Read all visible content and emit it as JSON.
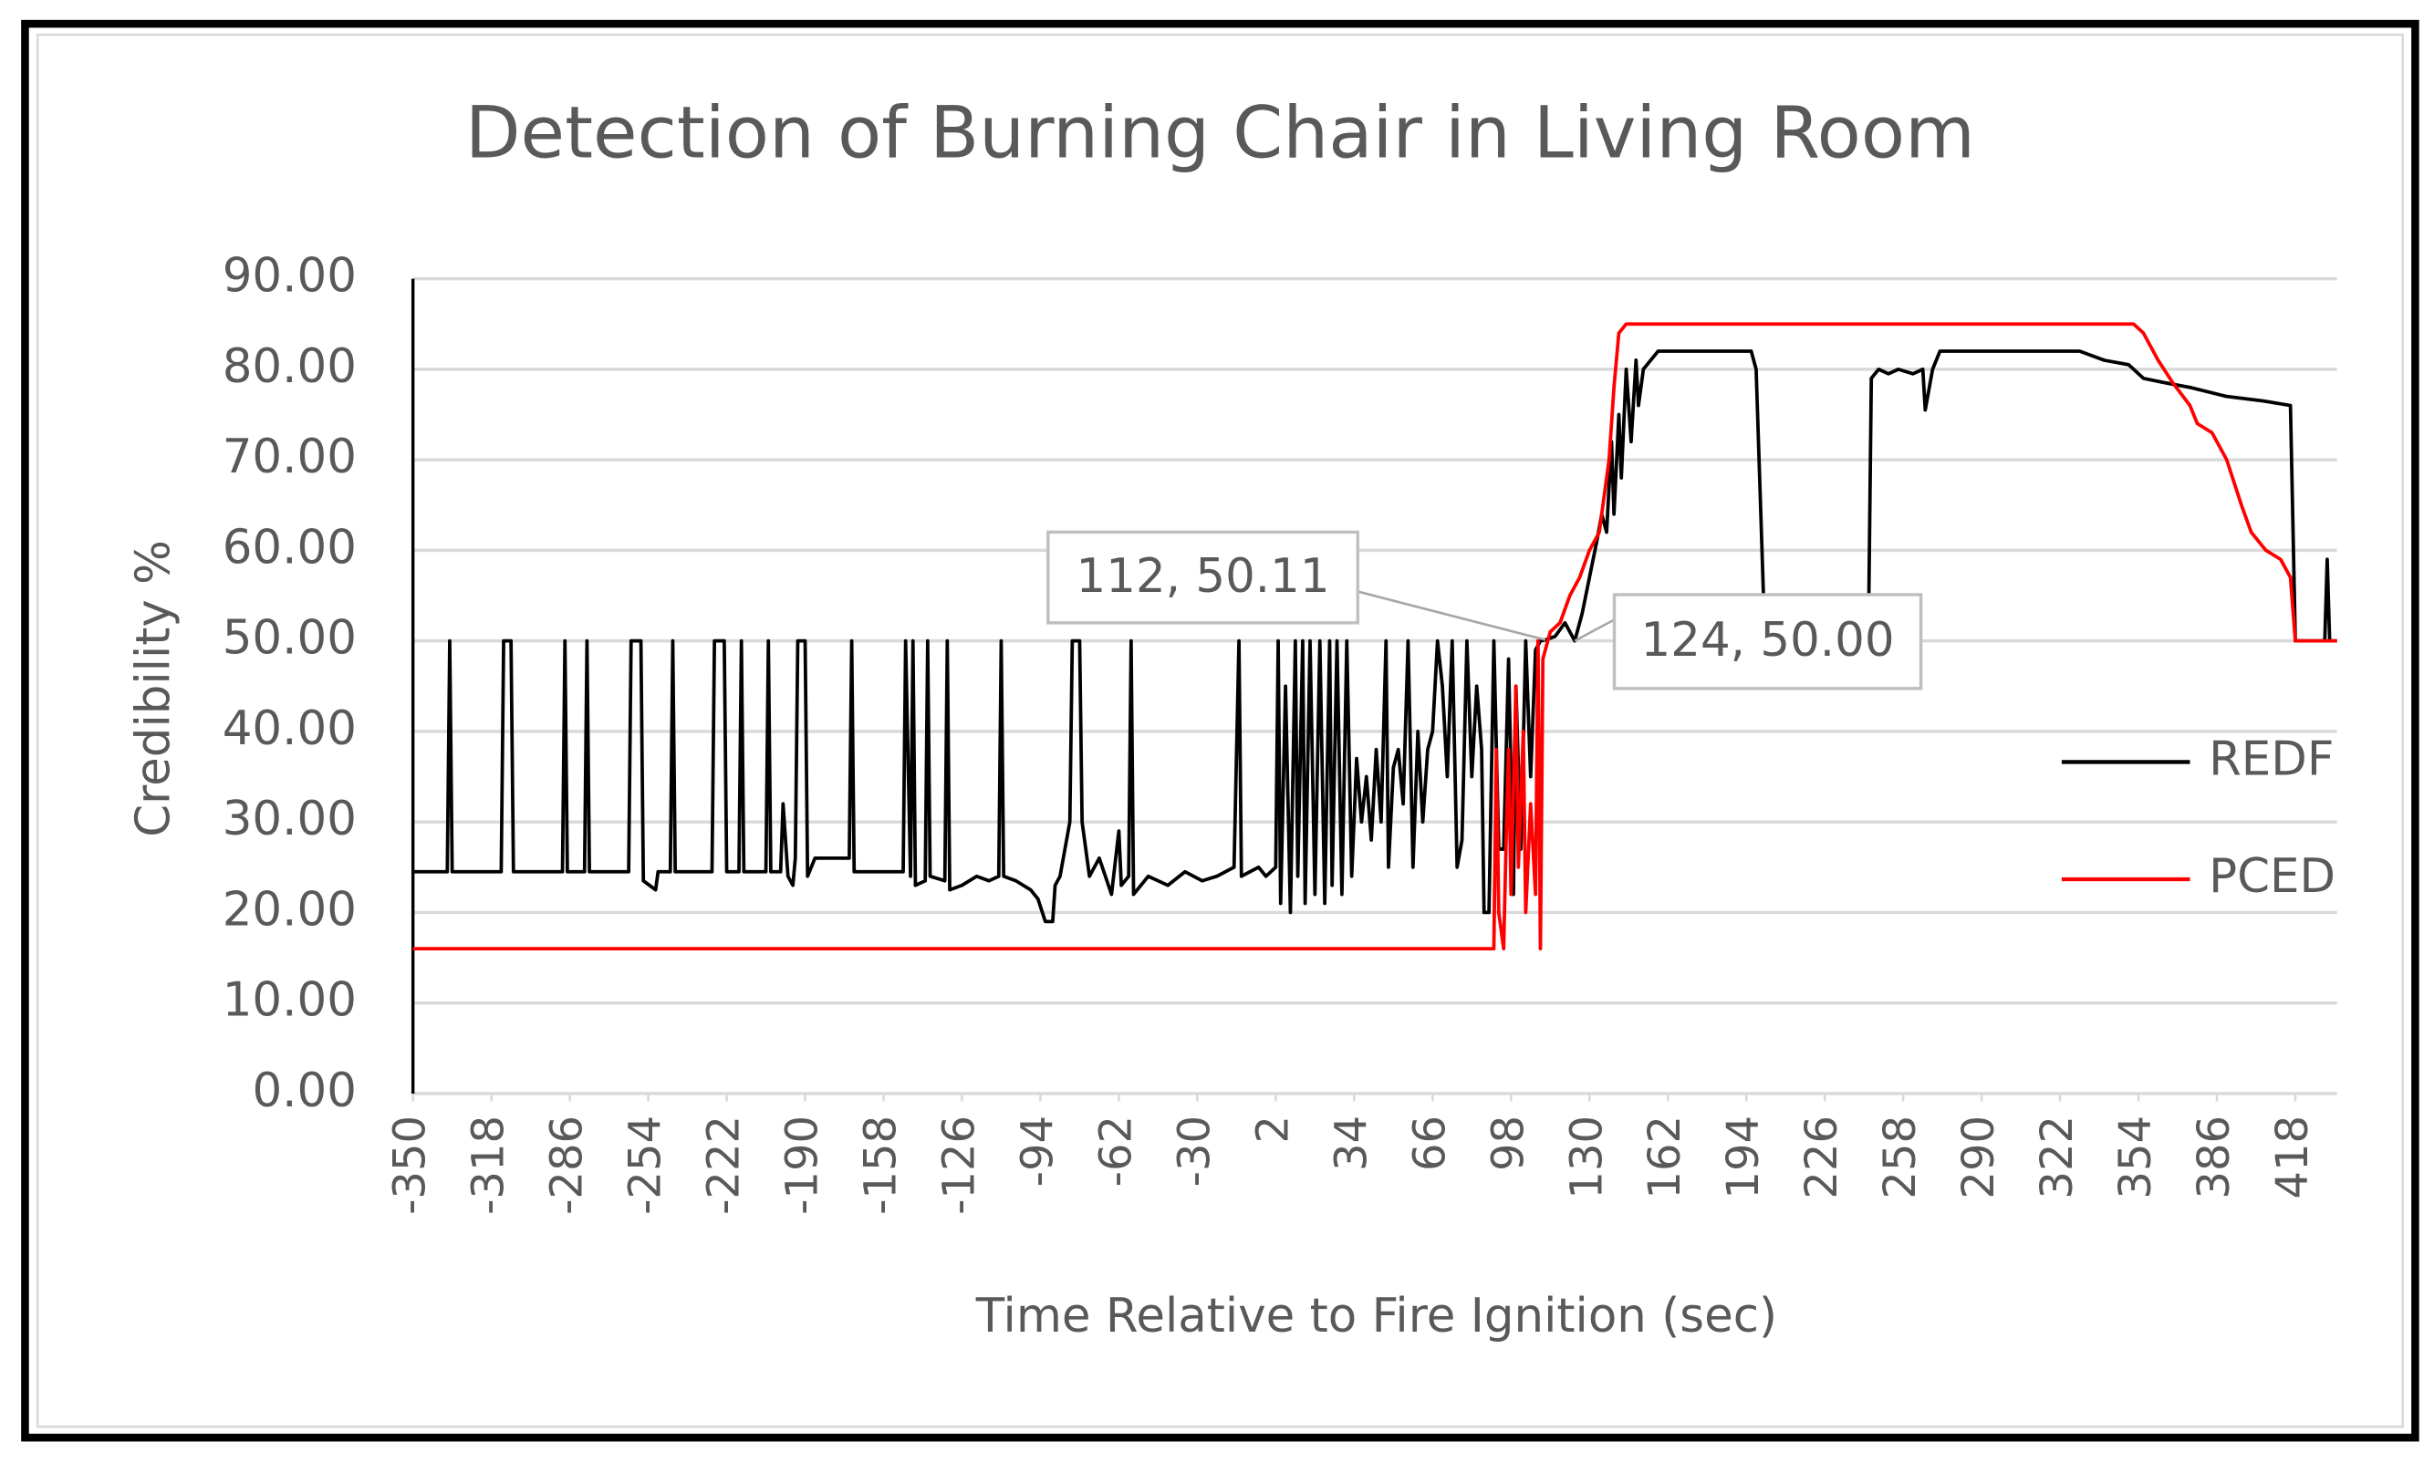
{
  "chart_data": {
    "type": "line",
    "title": "Detection of Burning Chair in Living Room",
    "x_label": "Time Relative to Fire Ignition (sec)",
    "y_label": "Credibility %",
    "xlim": [
      -350,
      435
    ],
    "xticks": [
      -350,
      -318,
      -286,
      -254,
      -222,
      -190,
      -158,
      -126,
      -94,
      -62,
      -30,
      2,
      34,
      66,
      98,
      130,
      162,
      194,
      226,
      258,
      290,
      322,
      354,
      386,
      418
    ],
    "ylim": [
      0,
      90
    ],
    "yticks": [
      {
        "value": 0,
        "label": "0.00"
      },
      {
        "value": 10,
        "label": "10.00"
      },
      {
        "value": 20,
        "label": "20.00"
      },
      {
        "value": 30,
        "label": "30.00"
      },
      {
        "value": 40,
        "label": "40.00"
      },
      {
        "value": 50,
        "label": "50.00"
      },
      {
        "value": 60,
        "label": "60.00"
      },
      {
        "value": 70,
        "label": "70.00"
      },
      {
        "value": 80,
        "label": "80.00"
      },
      {
        "value": 90,
        "label": "90.00"
      }
    ],
    "grid": true,
    "legend": "right",
    "series": [
      {
        "name": "REDF",
        "color": "#000000",
        "x": [
          -350,
          -336,
          -335,
          -334,
          -314,
          -313,
          -310,
          -309,
          -289,
          -288,
          -287,
          -280,
          -279,
          -278,
          -262,
          -261,
          -257,
          -256,
          -251,
          -250,
          -245,
          -244,
          -243,
          -228,
          -227,
          -223,
          -222,
          -217,
          -216,
          -215,
          -206,
          -205,
          -204,
          -200,
          -199,
          -197,
          -195,
          -194,
          -193,
          -190,
          -189,
          -186,
          -172,
          -171,
          -170,
          -150,
          -149,
          -147,
          -146,
          -145,
          -141,
          -140,
          -139,
          -133,
          -132,
          -131,
          -126,
          -120,
          -115,
          -111,
          -110,
          -109,
          -104,
          -98,
          -95,
          -92,
          -89,
          -88,
          -86,
          -82,
          -81,
          -78,
          -77,
          -74,
          -70,
          -65,
          -62,
          -61,
          -58,
          -57,
          -56,
          -50,
          -42,
          -35,
          -28,
          -22,
          -15,
          -13,
          -12,
          -5,
          -2,
          2,
          3,
          4,
          6,
          8,
          10,
          11,
          13,
          14,
          16,
          18,
          20,
          22,
          24,
          25,
          27,
          29,
          31,
          33,
          35,
          37,
          39,
          41,
          43,
          45,
          47,
          48,
          50,
          52,
          54,
          56,
          58,
          60,
          62,
          64,
          66,
          68,
          70,
          72,
          74,
          76,
          78,
          80,
          82,
          84,
          86,
          87,
          89,
          91,
          93,
          95,
          97,
          99,
          100,
          102,
          104,
          106,
          108,
          110,
          112,
          116,
          120,
          124,
          127,
          130,
          133,
          135,
          137,
          139,
          140,
          142,
          143,
          145,
          147,
          149,
          150,
          152,
          155,
          158,
          175,
          196,
          198,
          201,
          244,
          245,
          248,
          252,
          256,
          262,
          266,
          267,
          270,
          273,
          300,
          330,
          340,
          350,
          356,
          365,
          375,
          390,
          405,
          416,
          418,
          430,
          431,
          432,
          435
        ],
        "values": [
          24.5,
          24.5,
          50,
          24.5,
          24.5,
          50,
          50,
          24.5,
          24.5,
          50,
          24.5,
          24.5,
          50,
          24.5,
          24.5,
          50,
          50,
          23.5,
          22.5,
          24.5,
          24.5,
          50,
          24.5,
          24.5,
          50,
          50,
          24.5,
          24.5,
          50,
          24.5,
          24.5,
          50,
          24.5,
          24.5,
          32,
          24,
          23,
          26,
          50,
          50,
          24,
          26,
          26,
          50,
          24.5,
          24.5,
          50,
          24,
          50,
          23,
          23.5,
          50,
          24,
          23.5,
          50,
          22.5,
          23,
          24,
          23.5,
          24,
          50,
          24,
          23.5,
          22.5,
          21.5,
          19,
          19,
          23,
          24,
          30,
          50,
          50,
          30,
          24,
          26,
          22,
          29,
          23,
          24,
          50,
          22,
          24,
          23,
          24.5,
          23.5,
          24,
          25,
          50,
          24,
          25,
          24,
          25,
          50,
          21,
          45,
          20,
          50,
          24,
          50,
          21,
          50,
          22,
          50,
          21,
          50,
          23,
          50,
          22,
          50,
          24,
          37,
          30,
          35,
          28,
          38,
          30,
          50,
          25,
          36,
          38,
          32,
          50,
          25,
          40,
          30,
          38,
          40,
          50,
          45,
          35,
          50,
          25,
          28,
          50,
          35,
          45,
          38,
          20,
          20,
          50,
          27,
          27,
          48,
          22,
          45,
          27,
          50,
          35,
          49,
          50,
          50.11,
          50.5,
          52,
          50,
          53,
          57,
          61,
          64,
          62,
          72,
          64,
          75,
          68,
          80,
          72,
          81,
          76,
          80,
          81,
          82,
          82,
          82,
          80,
          55,
          55,
          79,
          80,
          79.5,
          80,
          79.5,
          80,
          75.5,
          80,
          82,
          82,
          82,
          81,
          80.5,
          79,
          78.5,
          78,
          77,
          76.5,
          76,
          50,
          50,
          59,
          50,
          50
        ]
      },
      {
        "name": "PCED",
        "color": "#ff0000",
        "x": [
          -350,
          91,
          92,
          93,
          95,
          96,
          97,
          98,
          100,
          101,
          103,
          104,
          106,
          108,
          109,
          110,
          111,
          114,
          118,
          122,
          126,
          130,
          134,
          138,
          140,
          142,
          145,
          150,
          300,
          352,
          356,
          362,
          368,
          375,
          378,
          384,
          390,
          396,
          400,
          406,
          412,
          416,
          418,
          435
        ],
        "values": [
          16,
          16,
          38,
          20,
          16,
          28,
          38,
          22,
          45,
          25,
          40,
          20,
          32,
          22,
          50,
          16,
          48,
          51,
          52,
          55,
          57,
          60,
          62,
          70,
          78,
          84,
          85,
          85,
          85,
          85,
          84,
          81,
          78.5,
          76,
          74,
          73,
          70,
          65,
          62,
          60,
          59,
          57,
          50,
          50
        ]
      }
    ],
    "annotations": [
      {
        "label": "112, 50.11",
        "x": 112,
        "y": 50.11
      },
      {
        "label": "124, 50.00",
        "x": 124,
        "y": 50
      }
    ]
  }
}
